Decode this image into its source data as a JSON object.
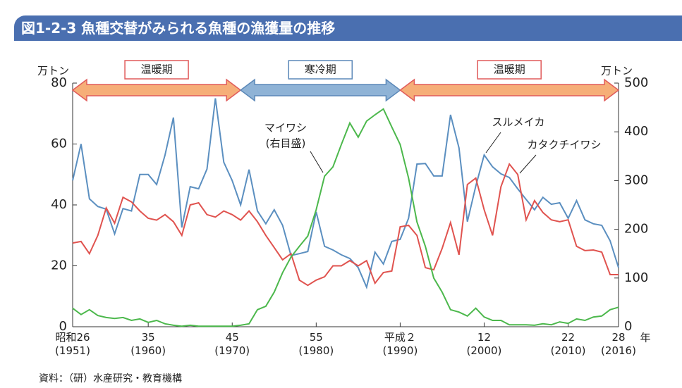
{
  "chart_data": {
    "type": "line",
    "title": "図1-2-3 魚種交替がみられる魚種の漁獲量の推移",
    "source": "資料：（研）水産研究・教育機構",
    "y_label": "万トン",
    "y2_label": "万トン",
    "x_label": "年",
    "x": [
      1951,
      1952,
      1953,
      1954,
      1955,
      1956,
      1957,
      1958,
      1959,
      1960,
      1961,
      1962,
      1963,
      1964,
      1965,
      1966,
      1967,
      1968,
      1969,
      1970,
      1971,
      1972,
      1973,
      1974,
      1975,
      1976,
      1977,
      1978,
      1979,
      1980,
      1981,
      1982,
      1983,
      1984,
      1985,
      1986,
      1987,
      1988,
      1989,
      1990,
      1991,
      1992,
      1993,
      1994,
      1995,
      1996,
      1997,
      1998,
      1999,
      2000,
      2001,
      2002,
      2003,
      2004,
      2005,
      2006,
      2007,
      2008,
      2009,
      2010,
      2011,
      2012,
      2013,
      2014,
      2015,
      2016
    ],
    "xlim": [
      1951,
      2016
    ],
    "xticks": [
      {
        "value": 1951,
        "label": "昭和26\n(1951)"
      },
      {
        "value": 1960,
        "label": "35\n(1960)"
      },
      {
        "value": 1970,
        "label": "45\n(1970)"
      },
      {
        "value": 1980,
        "label": "55\n(1980)"
      },
      {
        "value": 1990,
        "label": "平成２\n(1990)"
      },
      {
        "value": 2000,
        "label": "12\n(2000)"
      },
      {
        "value": 2010,
        "label": "22\n(2010)"
      },
      {
        "value": 2016,
        "label": "28\n(2016)"
      }
    ],
    "ylim": [
      0,
      80
    ],
    "yticks": [
      0,
      20,
      40,
      60,
      80
    ],
    "y2lim": [
      0,
      500
    ],
    "y2ticks": [
      0,
      100,
      200,
      300,
      400,
      500
    ],
    "series": [
      {
        "name": "スルメイカ",
        "color": "#5b8fc0",
        "values": [
          48,
          60,
          42,
          39.5,
          38.6,
          30.5,
          38.8,
          38,
          50,
          50,
          46.7,
          56.4,
          68.7,
          32.6,
          46,
          45.3,
          51.8,
          75,
          54,
          48,
          40,
          51.6,
          38,
          33.8,
          38.4,
          33.3,
          23.4,
          24,
          24.7,
          37.7,
          26.4,
          25.2,
          23.6,
          22.4,
          19.4,
          13,
          24.5,
          20.6,
          28,
          28.7,
          35.6,
          53.4,
          53.6,
          49.5,
          49.5,
          69.6,
          58.7,
          34.5,
          46.2,
          56.4,
          52.5,
          50.2,
          49,
          45.3,
          41.8,
          38.4,
          42.5,
          40.2,
          40.7,
          35.6,
          41.4,
          35.1,
          33.8,
          33.3,
          28.2,
          19.4
        ]
      },
      {
        "name": "カタクチイワシ",
        "color": "#e0534f",
        "values": [
          27.5,
          28,
          24,
          30,
          39,
          34,
          42.5,
          41,
          38,
          35.6,
          35,
          36.8,
          34.5,
          30,
          40,
          40.7,
          36.8,
          36,
          38,
          36.8,
          35,
          38,
          34.5,
          30,
          26,
          22,
          24,
          15.3,
          13.6,
          15.3,
          16.4,
          20,
          20,
          21.7,
          20,
          21.7,
          14.3,
          17.8,
          18.3,
          32.8,
          33.3,
          30,
          19.4,
          18.7,
          25.7,
          34.2,
          23.6,
          46.7,
          48.8,
          38.4,
          30,
          46,
          53.4,
          50,
          35.1,
          41.4,
          37.5,
          35.1,
          34.5,
          35.1,
          26.4,
          25,
          25.2,
          24.5,
          17.1,
          17.1
        ]
      },
      {
        "name": "マイワシ",
        "color": "#4cb84c",
        "axis": "y2",
        "values": [
          38,
          25,
          35,
          23,
          19,
          17,
          19,
          13,
          16,
          9,
          13,
          6,
          3,
          1,
          3,
          1,
          1,
          1,
          1,
          1,
          3,
          6,
          35,
          42,
          71,
          111,
          143,
          165,
          186,
          240,
          309,
          328,
          374,
          418,
          389,
          422,
          435,
          447,
          410,
          374,
          305,
          215,
          165,
          100,
          71,
          35,
          30,
          22,
          38,
          20,
          13,
          13,
          4,
          4,
          4,
          3,
          6,
          4,
          10,
          7,
          16,
          13,
          20,
          22,
          35,
          40
        ]
      }
    ],
    "annotations": [
      "(右目盛)"
    ],
    "periods": [
      {
        "label": "温暖期",
        "start": 1951,
        "end": 1971,
        "color": "#f6ae78",
        "border": "#e05a5a"
      },
      {
        "label": "寒冷期",
        "start": 1971,
        "end": 1990,
        "color": "#8fb3d6",
        "border": "#5b88b8"
      },
      {
        "label": "温暖期",
        "start": 1990,
        "end": 2016,
        "color": "#f6ae78",
        "border": "#e05a5a"
      }
    ]
  }
}
